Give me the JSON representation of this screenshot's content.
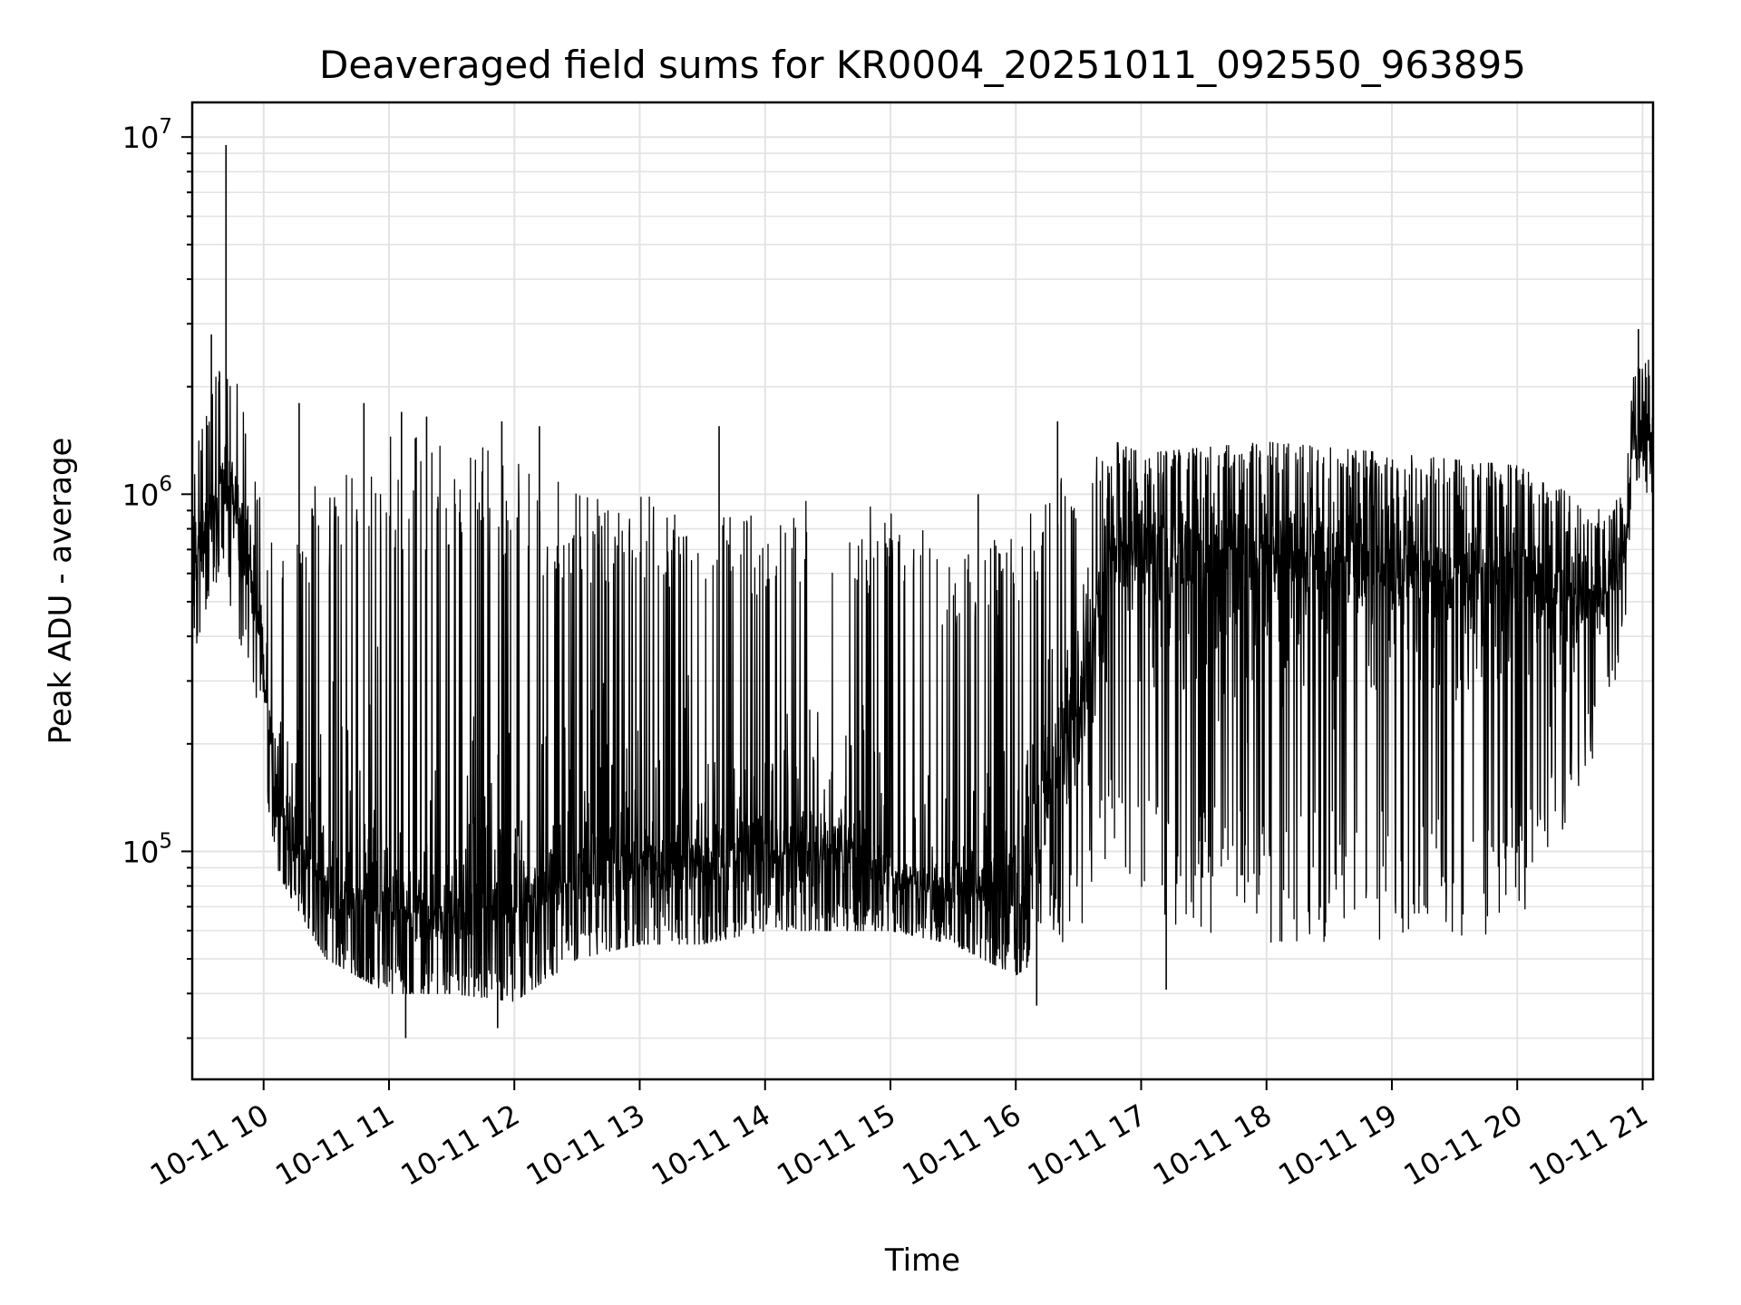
{
  "chart_data": {
    "type": "line",
    "title": "Deaveraged field sums for KR0004_20251011_092550_963895",
    "xlabel": "Time",
    "ylabel": "Peak ADU - average",
    "yscale": "log",
    "ylim": [
      23000,
      12500000
    ],
    "xlim": [
      "2025-10-11 09:25:50",
      "2025-10-11 21:05:00"
    ],
    "x_ticks": [
      {
        "value": "2025-10-11 10:00",
        "label": "10-11 10"
      },
      {
        "value": "2025-10-11 11:00",
        "label": "10-11 11"
      },
      {
        "value": "2025-10-11 12:00",
        "label": "10-11 12"
      },
      {
        "value": "2025-10-11 13:00",
        "label": "10-11 13"
      },
      {
        "value": "2025-10-11 14:00",
        "label": "10-11 14"
      },
      {
        "value": "2025-10-11 15:00",
        "label": "10-11 15"
      },
      {
        "value": "2025-10-11 16:00",
        "label": "10-11 16"
      },
      {
        "value": "2025-10-11 17:00",
        "label": "10-11 17"
      },
      {
        "value": "2025-10-11 18:00",
        "label": "10-11 18"
      },
      {
        "value": "2025-10-11 19:00",
        "label": "10-11 19"
      },
      {
        "value": "2025-10-11 20:00",
        "label": "10-11 20"
      },
      {
        "value": "2025-10-11 21:00",
        "label": "10-11 21"
      }
    ],
    "y_ticks": [
      {
        "value": 100000,
        "base": "10",
        "exp": "5"
      },
      {
        "value": 1000000,
        "base": "10",
        "exp": "6"
      },
      {
        "value": 10000000,
        "base": "10",
        "exp": "7"
      }
    ],
    "grid": true,
    "line_color": "#000000",
    "envelope_points": [
      {
        "x": "2025-10-11 09:25:50",
        "low": 350000,
        "mid": 600000,
        "high": 1200000
      },
      {
        "x": "2025-10-11 09:40",
        "low": 600000,
        "mid": 1100000,
        "high": 2500000
      },
      {
        "x": "2025-10-11 09:48",
        "low": 400000,
        "mid": 900000,
        "high": 2000000
      },
      {
        "x": "2025-10-11 09:58",
        "low": 250000,
        "mid": 450000,
        "high": 1000000
      },
      {
        "x": "2025-10-11 10:05",
        "low": 90000,
        "mid": 150000,
        "high": 700000
      },
      {
        "x": "2025-10-11 10:30",
        "low": 50000,
        "mid": 75000,
        "high": 1200000
      },
      {
        "x": "2025-10-11 11:00",
        "low": 40000,
        "mid": 70000,
        "high": 1500000
      },
      {
        "x": "2025-10-11 11:30",
        "low": 40000,
        "mid": 65000,
        "high": 1400000
      },
      {
        "x": "2025-10-11 12:00",
        "low": 38000,
        "mid": 70000,
        "high": 1300000
      },
      {
        "x": "2025-10-11 12:30",
        "low": 50000,
        "mid": 85000,
        "high": 1000000
      },
      {
        "x": "2025-10-11 13:00",
        "low": 55000,
        "mid": 95000,
        "high": 1000000
      },
      {
        "x": "2025-10-11 13:30",
        "low": 55000,
        "mid": 95000,
        "high": 900000
      },
      {
        "x": "2025-10-11 14:00",
        "low": 60000,
        "mid": 100000,
        "high": 900000
      },
      {
        "x": "2025-10-11 14:30",
        "low": 60000,
        "mid": 105000,
        "high": 1000000
      },
      {
        "x": "2025-10-11 15:00",
        "low": 60000,
        "mid": 85000,
        "high": 900000
      },
      {
        "x": "2025-10-11 15:30",
        "low": 55000,
        "mid": 80000,
        "high": 700000
      },
      {
        "x": "2025-10-11 16:00",
        "low": 45000,
        "mid": 80000,
        "high": 800000
      },
      {
        "x": "2025-10-11 16:30",
        "low": 60000,
        "mid": 250000,
        "high": 1300000
      },
      {
        "x": "2025-10-11 16:50",
        "low": 100000,
        "mid": 800000,
        "high": 1400000
      },
      {
        "x": "2025-10-11 17:00",
        "low": 60000,
        "mid": 700000,
        "high": 1300000
      },
      {
        "x": "2025-10-11 18:00",
        "low": 55000,
        "mid": 700000,
        "high": 1400000
      },
      {
        "x": "2025-10-11 19:00",
        "low": 55000,
        "mid": 650000,
        "high": 1300000
      },
      {
        "x": "2025-10-11 20:00",
        "low": 60000,
        "mid": 600000,
        "high": 1200000
      },
      {
        "x": "2025-10-11 20:40",
        "low": 200000,
        "mid": 500000,
        "high": 900000
      },
      {
        "x": "2025-10-11 20:52",
        "low": 400000,
        "mid": 700000,
        "high": 1000000
      },
      {
        "x": "2025-10-11 20:55",
        "low": 1000000,
        "mid": 1400000,
        "high": 2200000
      },
      {
        "x": "2025-10-11 21:05",
        "low": 1000000,
        "mid": 1400000,
        "high": 2500000
      }
    ],
    "spikes": [
      {
        "x": "2025-10-11 09:42",
        "y": 9500000
      },
      {
        "x": "2025-10-11 09:35",
        "y": 2800000
      },
      {
        "x": "2025-10-11 10:17",
        "y": 1800000
      },
      {
        "x": "2025-10-11 10:48",
        "y": 1800000
      },
      {
        "x": "2025-10-11 11:06",
        "y": 1700000
      },
      {
        "x": "2025-10-11 11:18",
        "y": 1650000
      },
      {
        "x": "2025-10-11 11:54",
        "y": 1600000
      },
      {
        "x": "2025-10-11 12:12",
        "y": 1550000
      },
      {
        "x": "2025-10-11 13:38",
        "y": 1550000
      },
      {
        "x": "2025-10-11 15:42",
        "y": 1000000
      },
      {
        "x": "2025-10-11 16:20",
        "y": 1600000
      },
      {
        "x": "2025-10-11 20:58",
        "y": 2900000
      },
      {
        "x": "2025-10-11 11:08",
        "y": 30000
      },
      {
        "x": "2025-10-11 11:52",
        "y": 32000
      },
      {
        "x": "2025-10-11 16:10",
        "y": 37000
      },
      {
        "x": "2025-10-11 17:12",
        "y": 41000
      }
    ]
  }
}
